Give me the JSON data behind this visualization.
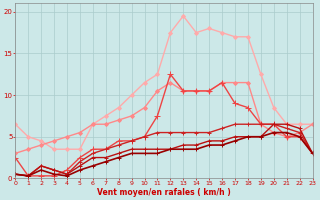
{
  "title": "",
  "xlabel": "Vent moyen/en rafales ( km/h )",
  "ylabel": "",
  "xlim": [
    0,
    23
  ],
  "ylim": [
    0,
    21
  ],
  "xticks": [
    0,
    1,
    2,
    3,
    4,
    5,
    6,
    7,
    8,
    9,
    10,
    11,
    12,
    13,
    14,
    15,
    16,
    17,
    18,
    19,
    20,
    21,
    22,
    23
  ],
  "yticks": [
    0,
    5,
    10,
    15,
    20
  ],
  "bg_color": "#cce8e8",
  "grid_color": "#aacccc",
  "lines": [
    {
      "x": [
        0,
        1,
        2,
        3,
        4,
        5,
        6,
        7,
        8,
        9,
        10,
        11,
        12,
        13,
        14,
        15,
        16,
        17,
        18,
        19,
        20,
        21,
        22,
        23
      ],
      "y": [
        6.5,
        5.0,
        4.5,
        3.5,
        3.5,
        3.5,
        6.5,
        7.5,
        8.5,
        10.0,
        11.5,
        12.5,
        17.5,
        19.5,
        17.5,
        18.0,
        17.5,
        17.0,
        17.0,
        12.5,
        8.5,
        6.5,
        6.5,
        6.5
      ],
      "color": "#ffaaaa",
      "lw": 1.0,
      "marker": "D",
      "ms": 2.0
    },
    {
      "x": [
        0,
        1,
        2,
        3,
        4,
        5,
        6,
        7,
        8,
        9,
        10,
        11,
        12,
        13,
        14,
        15,
        16,
        17,
        18,
        19,
        20,
        21,
        22,
        23
      ],
      "y": [
        3.0,
        3.5,
        4.0,
        4.5,
        5.0,
        5.5,
        6.5,
        6.5,
        7.0,
        7.5,
        8.5,
        10.5,
        11.5,
        10.5,
        10.5,
        10.5,
        11.5,
        11.5,
        11.5,
        6.5,
        5.5,
        5.0,
        5.5,
        6.5
      ],
      "color": "#ff8888",
      "lw": 1.0,
      "marker": "D",
      "ms": 2.0
    },
    {
      "x": [
        0,
        1,
        2,
        3,
        4,
        5,
        6,
        7,
        8,
        9,
        10,
        11,
        12,
        13,
        14,
        15,
        16,
        17,
        18,
        19,
        20,
        21,
        22,
        23
      ],
      "y": [
        2.5,
        0.3,
        0.3,
        0.3,
        1.0,
        2.5,
        3.5,
        3.5,
        4.5,
        4.5,
        5.0,
        7.5,
        12.5,
        10.5,
        10.5,
        10.5,
        11.5,
        9.0,
        8.5,
        6.5,
        6.5,
        5.0,
        5.0,
        3.0
      ],
      "color": "#ee4444",
      "lw": 1.0,
      "marker": "+",
      "ms": 4.0
    },
    {
      "x": [
        0,
        1,
        2,
        3,
        4,
        5,
        6,
        7,
        8,
        9,
        10,
        11,
        12,
        13,
        14,
        15,
        16,
        17,
        18,
        19,
        20,
        21,
        22,
        23
      ],
      "y": [
        0.5,
        0.3,
        1.5,
        1.0,
        0.5,
        2.0,
        3.0,
        3.5,
        4.0,
        4.5,
        5.0,
        5.5,
        5.5,
        5.5,
        5.5,
        5.5,
        6.0,
        6.5,
        6.5,
        6.5,
        6.5,
        6.0,
        5.5,
        3.0
      ],
      "color": "#cc2222",
      "lw": 1.0,
      "marker": "+",
      "ms": 3.5
    },
    {
      "x": [
        0,
        1,
        2,
        3,
        4,
        5,
        6,
        7,
        8,
        9,
        10,
        11,
        12,
        13,
        14,
        15,
        16,
        17,
        18,
        19,
        20,
        21,
        22,
        23
      ],
      "y": [
        0.5,
        0.3,
        1.5,
        1.0,
        0.5,
        1.5,
        2.5,
        2.5,
        3.0,
        3.5,
        3.5,
        3.5,
        3.5,
        4.0,
        4.0,
        4.5,
        4.5,
        5.0,
        5.0,
        5.0,
        6.5,
        6.5,
        6.0,
        3.0
      ],
      "color": "#bb1111",
      "lw": 1.0,
      "marker": "+",
      "ms": 3.5
    },
    {
      "x": [
        0,
        1,
        2,
        3,
        4,
        5,
        6,
        7,
        8,
        9,
        10,
        11,
        12,
        13,
        14,
        15,
        16,
        17,
        18,
        19,
        20,
        21,
        22,
        23
      ],
      "y": [
        0.5,
        0.3,
        1.0,
        0.5,
        0.3,
        1.0,
        1.5,
        2.0,
        2.5,
        3.0,
        3.0,
        3.0,
        3.5,
        3.5,
        3.5,
        4.0,
        4.0,
        4.5,
        5.0,
        5.0,
        5.5,
        5.5,
        5.0,
        3.0
      ],
      "color": "#990000",
      "lw": 1.2,
      "marker": "+",
      "ms": 3.0
    }
  ]
}
